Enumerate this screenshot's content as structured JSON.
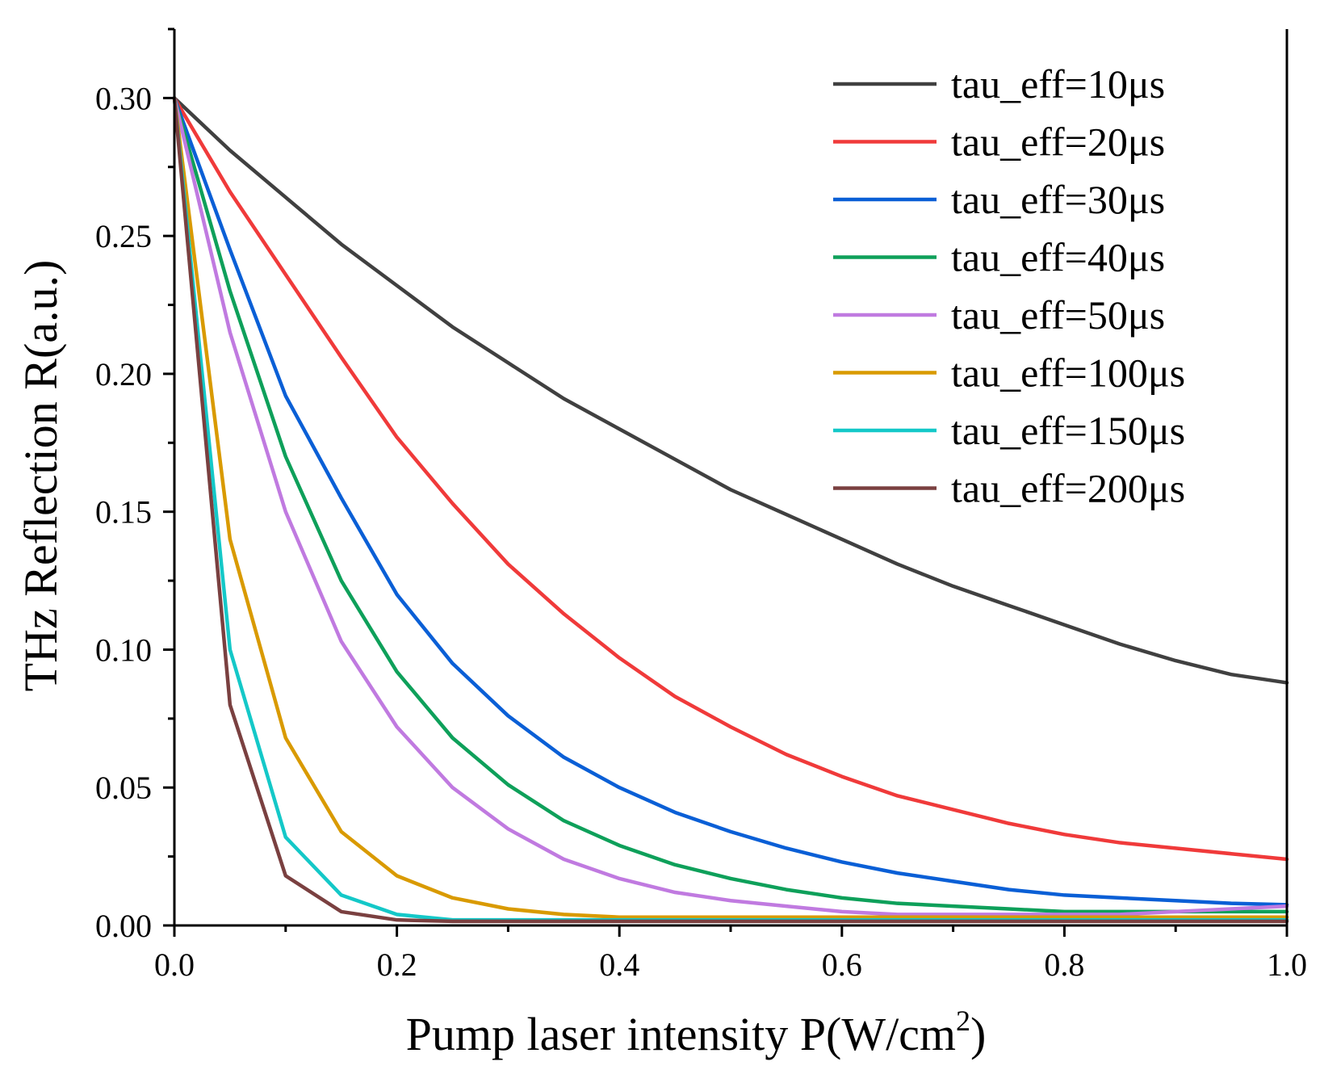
{
  "chart_data": {
    "type": "line",
    "title": "",
    "xlabel_main": "Pump laser intensity P(W/cm",
    "xlabel_sup": "2",
    "xlabel_end": ")",
    "ylabel": "THz Reflection R(a.u.)",
    "xlim": [
      0,
      1
    ],
    "ylim": [
      0,
      0.325
    ],
    "x_ticks": [
      0.0,
      0.2,
      0.4,
      0.6,
      0.8,
      1.0
    ],
    "x_tick_labels": [
      "0.0",
      "0.2",
      "0.4",
      "0.6",
      "0.8",
      "1.0"
    ],
    "y_ticks": [
      0.0,
      0.05,
      0.1,
      0.15,
      0.2,
      0.25,
      0.3
    ],
    "y_tick_labels": [
      "0.00",
      "0.05",
      "0.10",
      "0.15",
      "0.20",
      "0.25",
      "0.30"
    ],
    "grid": false,
    "legend_position": "top-right",
    "x": [
      0.0,
      0.05,
      0.1,
      0.15,
      0.2,
      0.25,
      0.3,
      0.35,
      0.4,
      0.45,
      0.5,
      0.55,
      0.6,
      0.65,
      0.7,
      0.75,
      0.8,
      0.85,
      0.9,
      0.95,
      1.0
    ],
    "series": [
      {
        "name": "tau_eff=10μs",
        "color": "#404040",
        "values": [
          0.3,
          0.281,
          0.264,
          0.247,
          0.232,
          0.217,
          0.204,
          0.191,
          0.18,
          0.169,
          0.158,
          0.149,
          0.14,
          0.131,
          0.123,
          0.116,
          0.109,
          0.102,
          0.096,
          0.091,
          0.088
        ]
      },
      {
        "name": "tau_eff=20μs",
        "color": "#f03a3a",
        "values": [
          0.3,
          0.266,
          0.236,
          0.206,
          0.177,
          0.153,
          0.131,
          0.113,
          0.097,
          0.083,
          0.072,
          0.062,
          0.054,
          0.047,
          0.042,
          0.037,
          0.033,
          0.03,
          0.028,
          0.026,
          0.024
        ]
      },
      {
        "name": "tau_eff=30μs",
        "color": "#0a5fd6",
        "values": [
          0.3,
          0.245,
          0.192,
          0.155,
          0.12,
          0.095,
          0.076,
          0.061,
          0.05,
          0.041,
          0.034,
          0.028,
          0.023,
          0.019,
          0.016,
          0.013,
          0.011,
          0.01,
          0.009,
          0.008,
          0.0075
        ]
      },
      {
        "name": "tau_eff=40μs",
        "color": "#0ea05a",
        "values": [
          0.3,
          0.23,
          0.17,
          0.125,
          0.092,
          0.068,
          0.051,
          0.038,
          0.029,
          0.022,
          0.017,
          0.013,
          0.01,
          0.008,
          0.007,
          0.006,
          0.005,
          0.005,
          0.005,
          0.005,
          0.005
        ]
      },
      {
        "name": "tau_eff=50μs",
        "color": "#c07ae0",
        "values": [
          0.3,
          0.215,
          0.15,
          0.103,
          0.072,
          0.05,
          0.035,
          0.024,
          0.017,
          0.012,
          0.009,
          0.007,
          0.005,
          0.004,
          0.004,
          0.004,
          0.004,
          0.004,
          0.005,
          0.006,
          0.007
        ]
      },
      {
        "name": "tau_eff=100μs",
        "color": "#d99a00",
        "values": [
          0.3,
          0.14,
          0.068,
          0.034,
          0.018,
          0.01,
          0.006,
          0.004,
          0.003,
          0.003,
          0.003,
          0.003,
          0.003,
          0.003,
          0.003,
          0.003,
          0.003,
          0.003,
          0.003,
          0.003,
          0.003
        ]
      },
      {
        "name": "tau_eff=150μs",
        "color": "#14c8c8",
        "values": [
          0.3,
          0.1,
          0.032,
          0.011,
          0.004,
          0.002,
          0.002,
          0.002,
          0.002,
          0.002,
          0.002,
          0.002,
          0.002,
          0.002,
          0.002,
          0.002,
          0.002,
          0.002,
          0.002,
          0.002,
          0.002
        ]
      },
      {
        "name": "tau_eff=200μs",
        "color": "#7a4040",
        "values": [
          0.3,
          0.08,
          0.018,
          0.005,
          0.002,
          0.0015,
          0.0015,
          0.0015,
          0.0015,
          0.0015,
          0.0015,
          0.0015,
          0.0015,
          0.0015,
          0.0015,
          0.0015,
          0.0015,
          0.0015,
          0.0015,
          0.0015,
          0.0015
        ]
      }
    ]
  }
}
